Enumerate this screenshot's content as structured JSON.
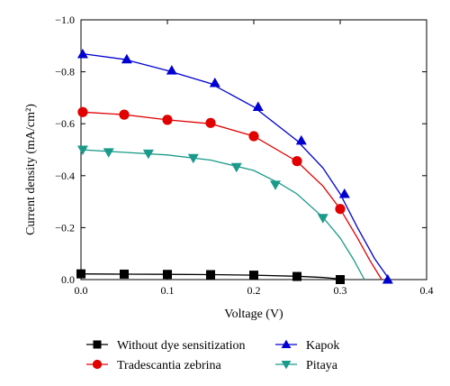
{
  "chart_data": {
    "type": "line",
    "title": "",
    "xlabel": "Voltage (V)",
    "ylabel": "Current density (mA/cm²)",
    "xlim": [
      0,
      0.4
    ],
    "ylim": [
      0,
      -1.0
    ],
    "x_ticks": [
      "0.0",
      "0.1",
      "0.2",
      "0.3",
      "0.4"
    ],
    "y_ticks": [
      "0.0",
      "−0.2",
      "−0.4",
      "−0.6",
      "−0.8",
      "−1.0"
    ],
    "grid": false,
    "legend_position": "below",
    "series": [
      {
        "name": "Without dye sensitization",
        "color": "#000000",
        "marker": "square",
        "curve": [
          [
            0,
            -0.022
          ],
          [
            0.05,
            -0.021
          ],
          [
            0.1,
            -0.02
          ],
          [
            0.15,
            -0.019
          ],
          [
            0.2,
            -0.017
          ],
          [
            0.25,
            -0.013
          ],
          [
            0.28,
            -0.008
          ],
          [
            0.3,
            -0.002
          ],
          [
            0.305,
            0
          ]
        ],
        "markers": [
          [
            0,
            -0.022
          ],
          [
            0.05,
            -0.021
          ],
          [
            0.1,
            -0.02
          ],
          [
            0.15,
            -0.019
          ],
          [
            0.2,
            -0.017
          ],
          [
            0.25,
            -0.012
          ],
          [
            0.3,
            0
          ]
        ]
      },
      {
        "name": "Tradescantia zebrina",
        "color": "#e00000",
        "marker": "circle",
        "curve": [
          [
            0,
            -0.645
          ],
          [
            0.05,
            -0.635
          ],
          [
            0.1,
            -0.615
          ],
          [
            0.15,
            -0.6
          ],
          [
            0.2,
            -0.552
          ],
          [
            0.25,
            -0.455
          ],
          [
            0.28,
            -0.36
          ],
          [
            0.3,
            -0.272
          ],
          [
            0.32,
            -0.16
          ],
          [
            0.335,
            -0.07
          ],
          [
            0.348,
            0
          ]
        ],
        "markers": [
          [
            0.002,
            -0.645
          ],
          [
            0.05,
            -0.635
          ],
          [
            0.1,
            -0.615
          ],
          [
            0.15,
            -0.603
          ],
          [
            0.2,
            -0.552
          ],
          [
            0.25,
            -0.456
          ],
          [
            0.3,
            -0.272
          ]
        ]
      },
      {
        "name": "Kapok",
        "color": "#0000d0",
        "marker": "triangle-up",
        "curve": [
          [
            0,
            -0.87
          ],
          [
            0.05,
            -0.848
          ],
          [
            0.1,
            -0.805
          ],
          [
            0.15,
            -0.755
          ],
          [
            0.2,
            -0.665
          ],
          [
            0.25,
            -0.535
          ],
          [
            0.28,
            -0.43
          ],
          [
            0.3,
            -0.33
          ],
          [
            0.32,
            -0.2
          ],
          [
            0.34,
            -0.08
          ],
          [
            0.357,
            0
          ]
        ],
        "markers": [
          [
            0.002,
            -0.868
          ],
          [
            0.053,
            -0.848
          ],
          [
            0.105,
            -0.805
          ],
          [
            0.155,
            -0.757
          ],
          [
            0.205,
            -0.665
          ],
          [
            0.255,
            -0.535
          ],
          [
            0.305,
            -0.33
          ],
          [
            0.355,
            0
          ]
        ]
      },
      {
        "name": "Pitaya",
        "color": "#1a9a8a",
        "marker": "triangle-down",
        "curve": [
          [
            0,
            -0.5
          ],
          [
            0.05,
            -0.49
          ],
          [
            0.1,
            -0.48
          ],
          [
            0.15,
            -0.46
          ],
          [
            0.2,
            -0.42
          ],
          [
            0.23,
            -0.37
          ],
          [
            0.25,
            -0.33
          ],
          [
            0.28,
            -0.24
          ],
          [
            0.3,
            -0.16
          ],
          [
            0.315,
            -0.08
          ],
          [
            0.328,
            0
          ]
        ],
        "markers": [
          [
            0.002,
            -0.5
          ],
          [
            0.032,
            -0.49
          ],
          [
            0.078,
            -0.485
          ],
          [
            0.13,
            -0.468
          ],
          [
            0.18,
            -0.433
          ],
          [
            0.225,
            -0.365
          ],
          [
            0.28,
            -0.237
          ]
        ]
      }
    ]
  }
}
